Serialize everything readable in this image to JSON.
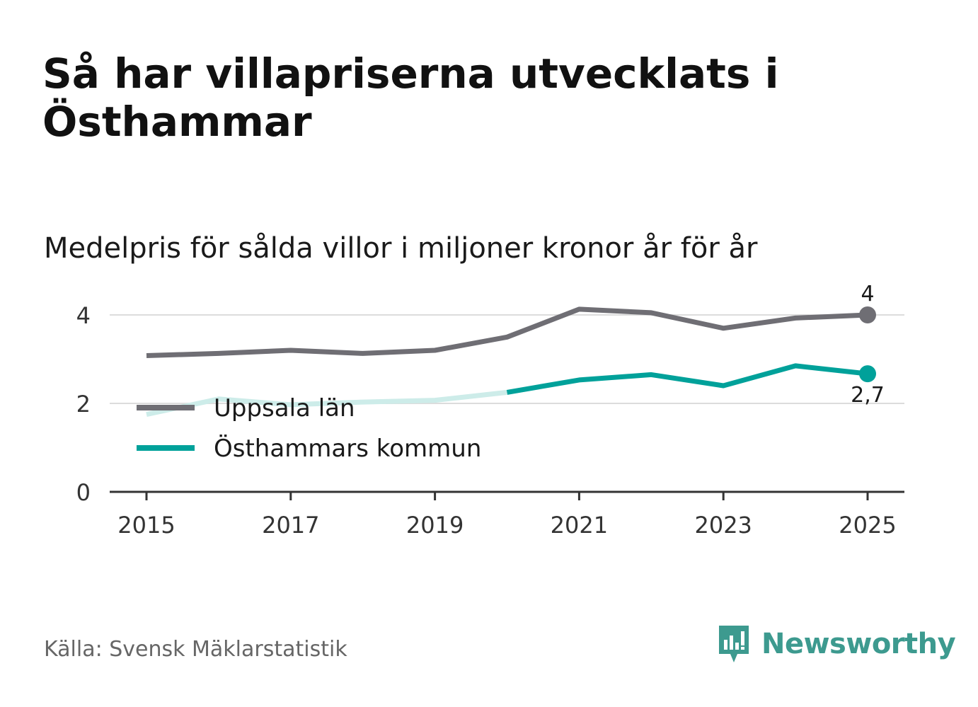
{
  "title": "Så har villapriserna utvecklats i Östhammar",
  "subtitle": "Medelpris för sålda villor i miljoner kronor år för år",
  "source": "Källa: Svensk Mäklarstatistik",
  "brand": "Newsworthy",
  "colors": {
    "uppsala": "#6f6e74",
    "osthammar": "#00a19a",
    "osthammar_faded": "#cdece9",
    "grid": "#dcdcdc",
    "axis": "#333333",
    "brand": "#3d9a8f"
  },
  "chart_data": {
    "type": "line",
    "title": "Medelpris för sålda villor i miljoner kronor år för år",
    "xlabel": "",
    "ylabel": "",
    "x": [
      2015,
      2016,
      2017,
      2018,
      2019,
      2020,
      2021,
      2022,
      2023,
      2024,
      2025
    ],
    "xticks": [
      "2015",
      "2017",
      "2019",
      "2021",
      "2023",
      "2025"
    ],
    "yticks": [
      "0",
      "2",
      "4"
    ],
    "ylim": [
      0,
      4.4
    ],
    "grid": true,
    "legend_position": "left-middle",
    "series": [
      {
        "name": "Uppsala län",
        "values": [
          3.08,
          3.13,
          3.2,
          3.13,
          3.2,
          3.5,
          4.13,
          4.05,
          3.7,
          3.93,
          4.0
        ],
        "end_label": "4"
      },
      {
        "name": "Östhammars kommun",
        "values": [
          1.75,
          2.1,
          1.97,
          2.03,
          2.07,
          2.25,
          2.53,
          2.65,
          2.4,
          2.85,
          2.67
        ],
        "faded_until_index": 5,
        "end_label": "2,7"
      }
    ]
  }
}
